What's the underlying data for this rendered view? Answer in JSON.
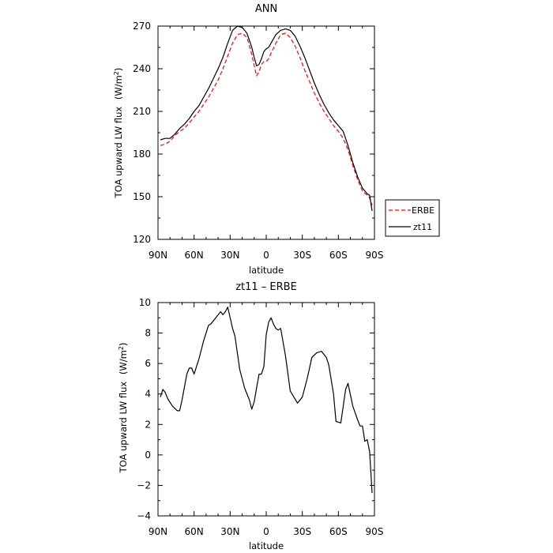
{
  "chart_data": [
    {
      "type": "line",
      "title": "ANN",
      "xlabel": "latitude",
      "ylabel": "TOA upward LW flux",
      "ylabel_unit_base": "(W/m",
      "ylabel_unit_sup": "2",
      "ylabel_unit_end": ")",
      "xlim": [
        90,
        -90
      ],
      "ylim": [
        120,
        270
      ],
      "x_ticks": [
        90,
        60,
        30,
        0,
        -30,
        -60,
        -90
      ],
      "x_tick_labels": [
        "90N",
        "60N",
        "30N",
        "0",
        "30S",
        "60S",
        "90S"
      ],
      "y_ticks": [
        120,
        150,
        180,
        210,
        240,
        270
      ],
      "y_tick_labels": [
        "120",
        "150",
        "180",
        "210",
        "240",
        "270"
      ],
      "legend_position": "right",
      "series": [
        {
          "name": "ERBE",
          "color": "#ff0000",
          "dash": "dashed",
          "x": [
            88,
            84,
            80,
            76,
            72,
            68,
            64,
            60,
            56,
            52,
            48,
            44,
            40,
            36,
            32,
            28,
            24,
            20,
            16,
            12,
            10,
            8,
            6,
            4,
            2,
            0,
            -2,
            -4,
            -8,
            -12,
            -16,
            -20,
            -24,
            -28,
            -32,
            -36,
            -40,
            -44,
            -48,
            -52,
            -56,
            -60,
            -64,
            -68,
            -72,
            -76,
            -80,
            -84,
            -86,
            -88
          ],
          "y": [
            186,
            187,
            189,
            193,
            196,
            198,
            202,
            206,
            210,
            215,
            220,
            226,
            232,
            240,
            249,
            258,
            264,
            265,
            262,
            250,
            242,
            235,
            238,
            243,
            245,
            245,
            247,
            251,
            258,
            264,
            265,
            262,
            256,
            248,
            239,
            231,
            223,
            216,
            210,
            205,
            200,
            196,
            191,
            183,
            172,
            162,
            154,
            151,
            149,
            144
          ]
        },
        {
          "name": "zt11",
          "color": "#000000",
          "dash": "solid",
          "x": [
            88,
            84,
            80,
            76,
            72,
            68,
            64,
            60,
            56,
            52,
            48,
            44,
            40,
            36,
            32,
            28,
            24,
            20,
            16,
            12,
            10,
            8,
            6,
            4,
            2,
            0,
            -2,
            -4,
            -8,
            -12,
            -16,
            -20,
            -24,
            -28,
            -32,
            -36,
            -40,
            -44,
            -48,
            -52,
            -56,
            -60,
            -64,
            -68,
            -72,
            -76,
            -80,
            -84,
            -86,
            -88
          ],
          "y": [
            190,
            191,
            191,
            194,
            198,
            201,
            205,
            210,
            214,
            220,
            226,
            233,
            240,
            248,
            258,
            267,
            270,
            269,
            265,
            255,
            248,
            242,
            243,
            247,
            252,
            254,
            255,
            258,
            264,
            267,
            268,
            267,
            263,
            256,
            248,
            239,
            230,
            222,
            215,
            209,
            204,
            200,
            196,
            186,
            174,
            164,
            156,
            152,
            151,
            140
          ]
        }
      ]
    },
    {
      "type": "line",
      "title": "zt11 – ERBE",
      "xlabel": "latitude",
      "ylabel": "TOA upward LW flux",
      "ylabel_unit_base": "(W/m",
      "ylabel_unit_sup": "2",
      "ylabel_unit_end": ")",
      "xlim": [
        90,
        -90
      ],
      "ylim": [
        -4,
        10
      ],
      "x_ticks": [
        90,
        60,
        30,
        0,
        -30,
        -60,
        -90
      ],
      "x_tick_labels": [
        "90N",
        "60N",
        "30N",
        "0",
        "30S",
        "60S",
        "90S"
      ],
      "y_ticks": [
        -4,
        -2,
        0,
        2,
        4,
        6,
        8,
        10
      ],
      "y_tick_labels": [
        "−4",
        "−2",
        "0",
        "2",
        "4",
        "6",
        "8",
        "10"
      ],
      "series": [
        {
          "color": "#000000",
          "dash": "solid",
          "x": [
            88,
            86,
            84,
            82,
            78,
            74,
            72,
            70,
            66,
            64,
            62,
            60,
            56,
            52,
            48,
            46,
            42,
            38,
            36,
            34,
            32,
            28,
            26,
            22,
            18,
            14,
            12,
            10,
            8,
            6,
            4,
            2,
            0,
            -2,
            -4,
            -6,
            -8,
            -10,
            -12,
            -16,
            -20,
            -26,
            -30,
            -34,
            -38,
            -42,
            -46,
            -50,
            -52,
            -56,
            -58,
            -62,
            -66,
            -68,
            -72,
            -76,
            -78,
            -80,
            -82,
            -84,
            -86,
            -88
          ],
          "y": [
            3.8,
            4.3,
            4.1,
            3.7,
            3.2,
            2.9,
            2.9,
            3.6,
            5.3,
            5.7,
            5.7,
            5.3,
            6.3,
            7.5,
            8.5,
            8.6,
            9.0,
            9.4,
            9.2,
            9.4,
            9.7,
            8.3,
            7.8,
            5.6,
            4.4,
            3.6,
            3.0,
            3.5,
            4.4,
            5.3,
            5.3,
            5.8,
            7.9,
            8.7,
            9.0,
            8.6,
            8.3,
            8.2,
            8.3,
            6.5,
            4.2,
            3.4,
            3.8,
            5.0,
            6.4,
            6.7,
            6.8,
            6.4,
            5.9,
            4.0,
            2.2,
            2.1,
            4.3,
            4.7,
            3.2,
            2.3,
            1.9,
            1.9,
            0.9,
            1.0,
            0.2,
            -2.5
          ]
        }
      ]
    }
  ]
}
